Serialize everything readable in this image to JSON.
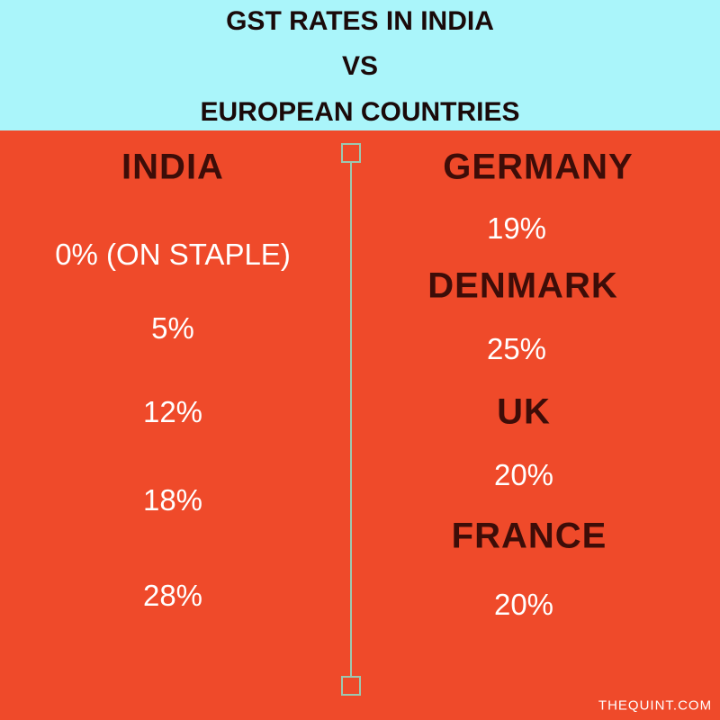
{
  "header": {
    "lines": [
      "GST RATES IN INDIA",
      "VS",
      "EUROPEAN COUNTRIES"
    ]
  },
  "india": {
    "title": "INDIA",
    "rates": [
      "0% (ON STAPLE)",
      "5%",
      "12%",
      "18%",
      "28%"
    ]
  },
  "europe": [
    {
      "country": "GERMANY",
      "rate": "19%"
    },
    {
      "country": "DENMARK",
      "rate": "25%"
    },
    {
      "country": "UK",
      "rate": "20%"
    },
    {
      "country": "FRANCE",
      "rate": "20%"
    }
  ],
  "footer": {
    "credit": "THEQUINT.COM"
  }
}
